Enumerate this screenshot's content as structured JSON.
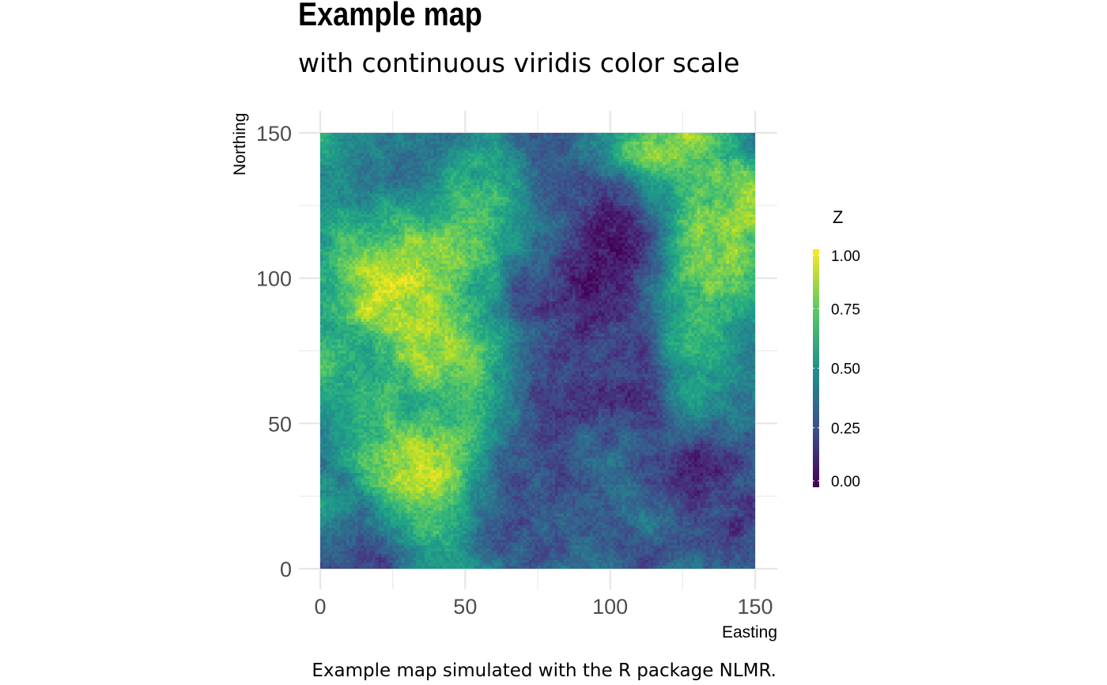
{
  "chart_data": {
    "type": "heatmap",
    "title": "Example map",
    "subtitle": "with continuous viridis color scale",
    "caption": "Example map simulated with the R package NLMR.",
    "xlabel": "Easting",
    "ylabel": "Northing",
    "xlim": [
      0,
      150
    ],
    "ylim": [
      0,
      150
    ],
    "x_ticks": [
      "0",
      "50",
      "100",
      "150"
    ],
    "y_ticks": [
      "0",
      "50",
      "100",
      "150"
    ],
    "grid": true,
    "color_scale": {
      "name": "viridis",
      "title": "Z",
      "range": [
        0,
        1
      ],
      "ticks": [
        "0.00",
        "0.25",
        "0.50",
        "0.75",
        "1.00"
      ],
      "colors": [
        "#440154",
        "#3b528b",
        "#21908c",
        "#5dc963",
        "#fde725"
      ],
      "legend_position": "right"
    },
    "grid_resolution": [
      150,
      150
    ],
    "features": [
      {
        "description": "high",
        "center": [
          30,
          92
        ],
        "value": 0.97
      },
      {
        "description": "high",
        "center": [
          20,
          100
        ],
        "value": 0.9
      },
      {
        "description": "high",
        "center": [
          38,
          72
        ],
        "value": 0.94
      },
      {
        "description": "high",
        "center": [
          43,
          108
        ],
        "value": 0.85
      },
      {
        "description": "high",
        "center": [
          38,
          28
        ],
        "value": 0.95
      },
      {
        "description": "high",
        "center": [
          33,
          42
        ],
        "value": 0.85
      },
      {
        "description": "high",
        "center": [
          118,
          146
        ],
        "value": 0.9
      },
      {
        "description": "high",
        "center": [
          140,
          124
        ],
        "value": 0.9
      },
      {
        "description": "high",
        "center": [
          138,
          108
        ],
        "value": 0.8
      },
      {
        "description": "high",
        "center": [
          125,
          75
        ],
        "value": 0.7
      },
      {
        "description": "high",
        "center": [
          62,
          130
        ],
        "value": 0.68
      },
      {
        "description": "high",
        "center": [
          10,
          70
        ],
        "value": 0.7
      },
      {
        "description": "low",
        "center": [
          90,
          70
        ],
        "value": 0.03
      },
      {
        "description": "low",
        "center": [
          100,
          78
        ],
        "value": 0.06
      },
      {
        "description": "low",
        "center": [
          103,
          120
        ],
        "value": 0.05
      },
      {
        "description": "low",
        "center": [
          98,
          100
        ],
        "value": 0.1
      },
      {
        "description": "low",
        "center": [
          80,
          112
        ],
        "value": 0.15
      },
      {
        "description": "low",
        "center": [
          135,
          32
        ],
        "value": 0.1
      },
      {
        "description": "low",
        "center": [
          138,
          15
        ],
        "value": 0.12
      },
      {
        "description": "low",
        "center": [
          82,
          38
        ],
        "value": 0.15
      },
      {
        "description": "low",
        "center": [
          70,
          12
        ],
        "value": 0.2
      },
      {
        "description": "low",
        "center": [
          100,
          20
        ],
        "value": 0.2
      },
      {
        "description": "low",
        "center": [
          10,
          2
        ],
        "value": 0.15
      },
      {
        "description": "low",
        "center": [
          75,
          148
        ],
        "value": 0.2
      },
      {
        "description": "low",
        "center": [
          110,
          55
        ],
        "value": 0.22
      }
    ]
  }
}
